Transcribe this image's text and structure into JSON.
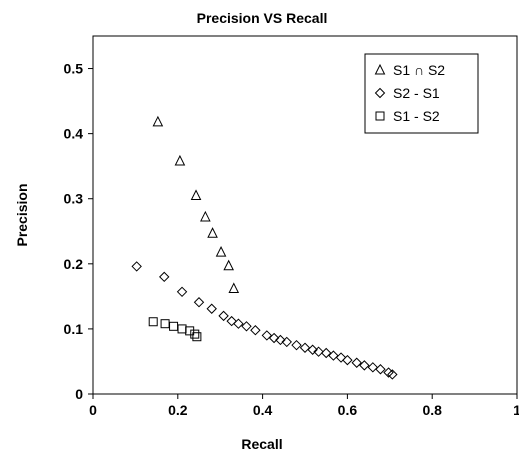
{
  "chart_data": {
    "type": "scatter",
    "title": "Precision VS Recall",
    "xlabel": "Recall",
    "ylabel": "Precision",
    "xlim": [
      0,
      1
    ],
    "ylim": [
      0,
      0.55
    ],
    "xticks": [
      0,
      0.2,
      0.4,
      0.6,
      0.8,
      1
    ],
    "xtick_labels": [
      "0",
      "0.2",
      "0.4",
      "0.6",
      "0.8",
      "1"
    ],
    "yticks": [
      0,
      0.1,
      0.2,
      0.3,
      0.4,
      0.5
    ],
    "ytick_labels": [
      "0",
      "0.1",
      "0.2",
      "0.3",
      "0.4",
      "0.5"
    ],
    "grid": false,
    "legend_position": "top-right",
    "series": [
      {
        "name": "S1 ∩ S2",
        "marker": "triangle",
        "points": [
          [
            0.153,
            0.418
          ],
          [
            0.205,
            0.358
          ],
          [
            0.243,
            0.305
          ],
          [
            0.265,
            0.272
          ],
          [
            0.282,
            0.247
          ],
          [
            0.302,
            0.218
          ],
          [
            0.32,
            0.197
          ],
          [
            0.332,
            0.162
          ]
        ]
      },
      {
        "name": "S2 - S1",
        "marker": "diamond",
        "points": [
          [
            0.103,
            0.196
          ],
          [
            0.168,
            0.18
          ],
          [
            0.21,
            0.157
          ],
          [
            0.25,
            0.141
          ],
          [
            0.28,
            0.131
          ],
          [
            0.308,
            0.12
          ],
          [
            0.327,
            0.112
          ],
          [
            0.343,
            0.108
          ],
          [
            0.362,
            0.104
          ],
          [
            0.383,
            0.098
          ],
          [
            0.41,
            0.09
          ],
          [
            0.427,
            0.086
          ],
          [
            0.442,
            0.083
          ],
          [
            0.457,
            0.08
          ],
          [
            0.48,
            0.075
          ],
          [
            0.5,
            0.071
          ],
          [
            0.518,
            0.068
          ],
          [
            0.532,
            0.065
          ],
          [
            0.55,
            0.063
          ],
          [
            0.567,
            0.059
          ],
          [
            0.585,
            0.056
          ],
          [
            0.6,
            0.052
          ],
          [
            0.622,
            0.048
          ],
          [
            0.64,
            0.044
          ],
          [
            0.66,
            0.041
          ],
          [
            0.678,
            0.038
          ],
          [
            0.697,
            0.033
          ],
          [
            0.706,
            0.03
          ]
        ]
      },
      {
        "name": "S1 - S2",
        "marker": "square",
        "points": [
          [
            0.142,
            0.111
          ],
          [
            0.17,
            0.108
          ],
          [
            0.19,
            0.104
          ],
          [
            0.21,
            0.1
          ],
          [
            0.228,
            0.097
          ],
          [
            0.24,
            0.092
          ],
          [
            0.245,
            0.088
          ]
        ]
      }
    ]
  }
}
